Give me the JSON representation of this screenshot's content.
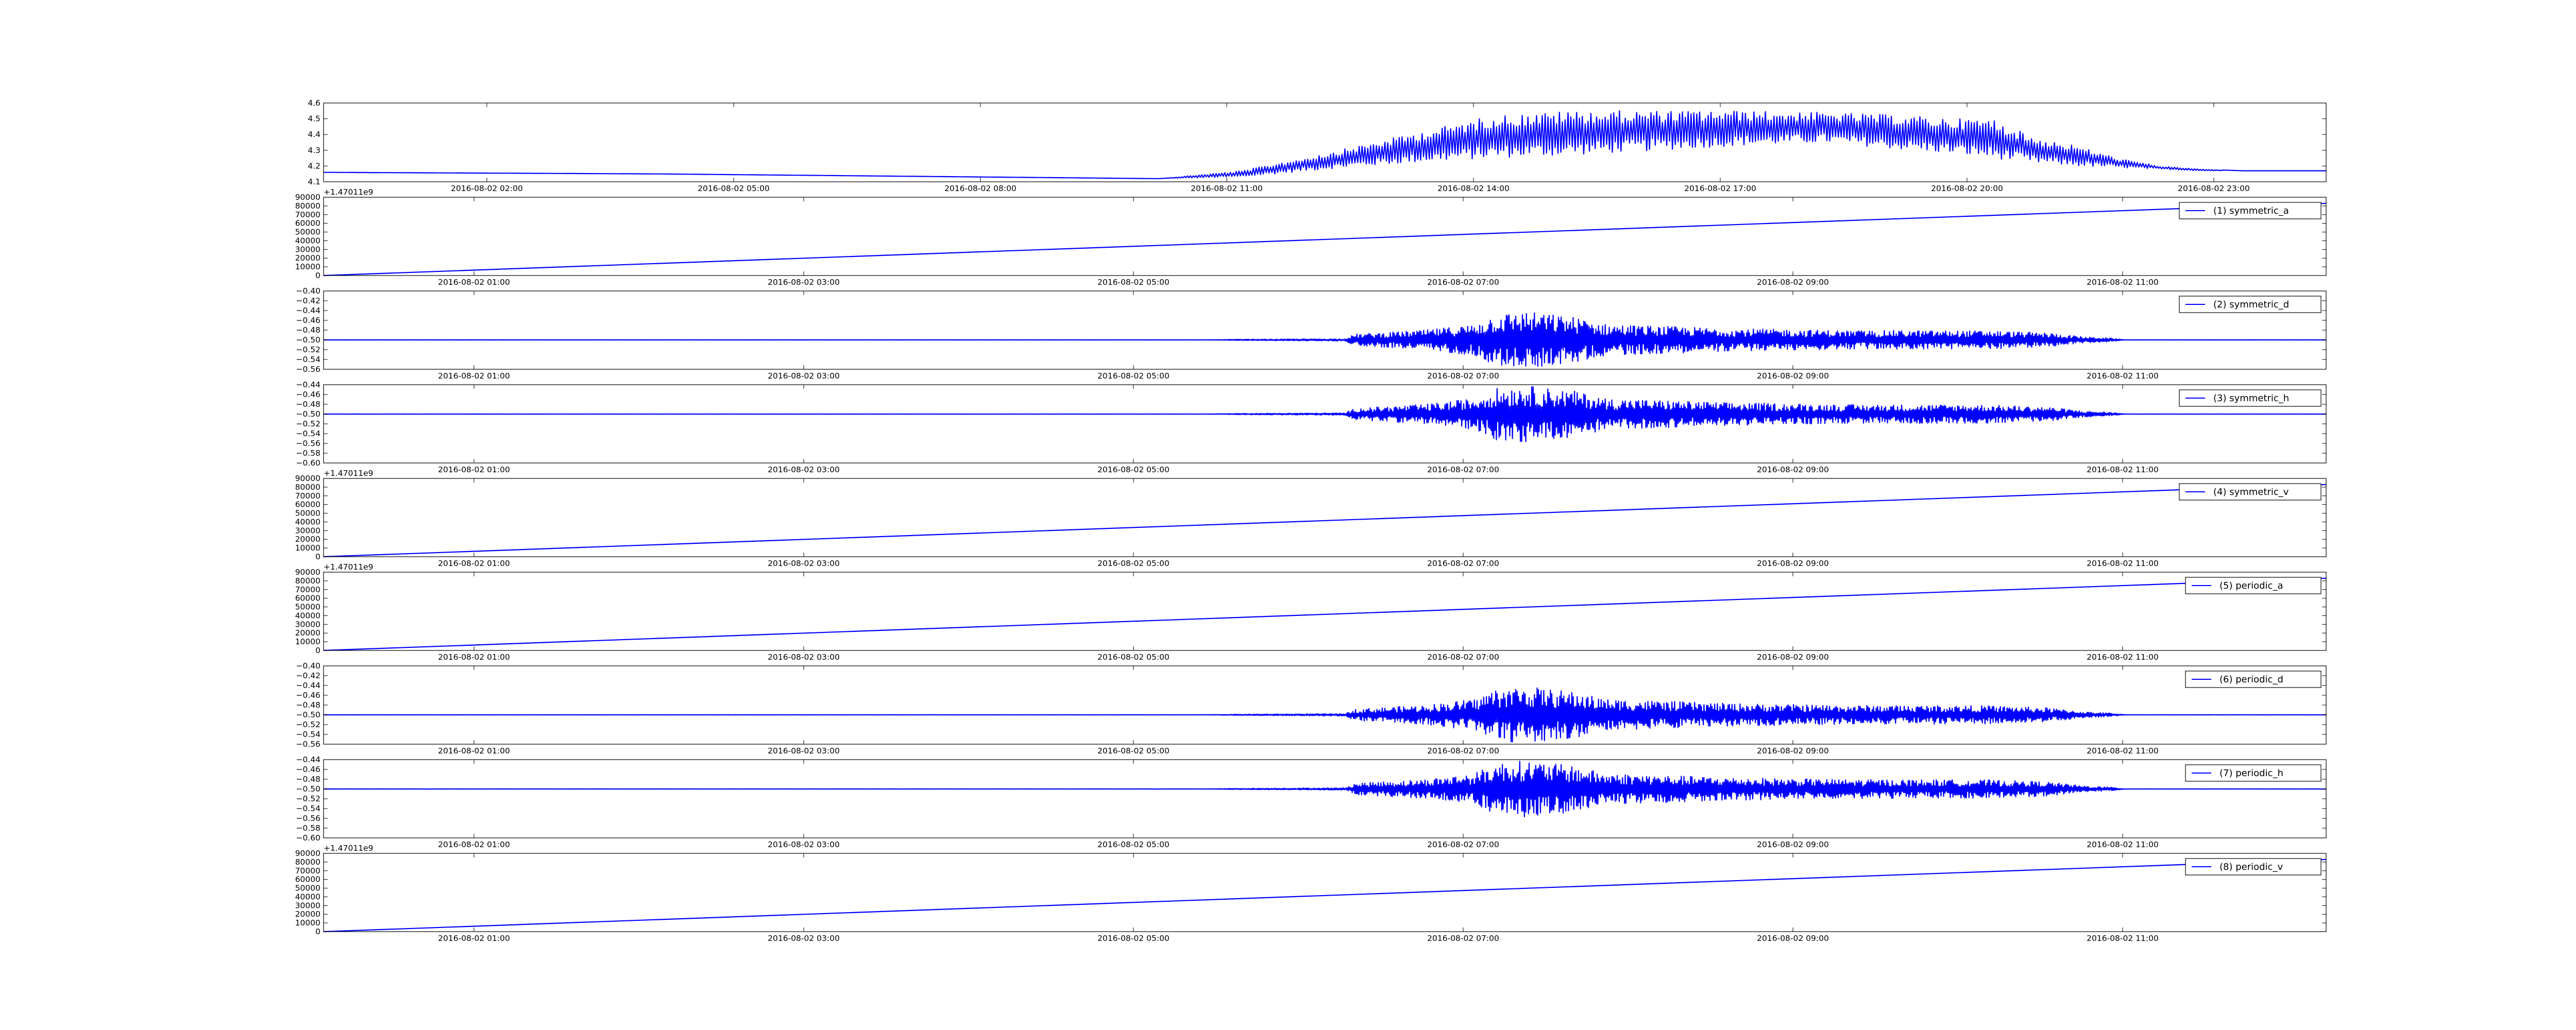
{
  "figure": {
    "line_color": "#0000ff"
  },
  "chart_data": [
    {
      "type": "line",
      "series": [
        {
          "name": "",
          "x": [
            0,
            2,
            4,
            6,
            8,
            10,
            11,
            12,
            13,
            14,
            15,
            16,
            17,
            18,
            19,
            19.5,
            20,
            20.5,
            21,
            21.5,
            22,
            22.5,
            23,
            24
          ],
          "values": [
            4.16,
            4.155,
            4.15,
            4.14,
            4.13,
            4.12,
            4.15,
            4.22,
            4.3,
            4.38,
            4.42,
            4.45,
            4.46,
            4.45,
            4.44,
            4.4,
            4.42,
            4.35,
            4.3,
            4.25,
            4.2,
            4.18,
            4.17,
            4.17
          ],
          "envelope_low": [
            4.16,
            4.155,
            4.15,
            4.14,
            4.13,
            4.12,
            4.13,
            4.18,
            4.22,
            4.25,
            4.27,
            4.3,
            4.33,
            4.35,
            4.3,
            4.28,
            4.25,
            4.22,
            4.2,
            4.19,
            4.18,
            4.17,
            4.17,
            4.17
          ],
          "envelope_high": [
            4.16,
            4.155,
            4.15,
            4.14,
            4.13,
            4.12,
            4.17,
            4.28,
            4.4,
            4.52,
            4.55,
            4.55,
            4.55,
            4.54,
            4.52,
            4.5,
            4.5,
            4.38,
            4.33,
            4.25,
            4.2,
            4.18,
            4.17,
            4.17
          ]
        }
      ],
      "x_tick_labels": [
        "2016-08-02 02:00",
        "2016-08-02 05:00",
        "2016-08-02 08:00",
        "2016-08-02 11:00",
        "2016-08-02 14:00",
        "2016-08-02 17:00",
        "2016-08-02 20:00",
        "2016-08-02 23:00"
      ],
      "y_tick_labels": [
        "4.1",
        "4.2",
        "4.3",
        "4.4",
        "4.5",
        "4.6"
      ],
      "ylim": [
        4.1,
        4.6
      ],
      "offset_text": "",
      "grid": false
    },
    {
      "type": "line",
      "kind": "ramp",
      "series": [
        {
          "name": "(1) symmetric_a"
        }
      ],
      "ylim": [
        0,
        90000
      ],
      "y_tick_labels": [
        "0",
        "10000",
        "20000",
        "30000",
        "40000",
        "50000",
        "60000",
        "70000",
        "80000",
        "90000"
      ],
      "x_tick_labels": [
        "2016-08-02 01:00",
        "2016-08-02 03:00",
        "2016-08-02 05:00",
        "2016-08-02 07:00",
        "2016-08-02 09:00",
        "2016-08-02 11:00"
      ],
      "offset_text": "+1.47011e9",
      "legend": "top-right"
    },
    {
      "type": "line",
      "kind": "noise",
      "series": [
        {
          "name": "(2) symmetric_d"
        }
      ],
      "center": -0.5,
      "ylim": [
        -0.56,
        -0.4
      ],
      "y_tick_labels": [
        "−0.56",
        "−0.54",
        "−0.52",
        "−0.50",
        "−0.48",
        "−0.46",
        "−0.44",
        "−0.42",
        "−0.40"
      ],
      "x_tick_labels": [
        "2016-08-02 01:00",
        "2016-08-02 03:00",
        "2016-08-02 05:00",
        "2016-08-02 07:00",
        "2016-08-02 09:00",
        "2016-08-02 11:00"
      ],
      "offset_text": "",
      "legend": "top-right"
    },
    {
      "type": "line",
      "kind": "noise",
      "series": [
        {
          "name": "(3) symmetric_h"
        }
      ],
      "center": -0.5,
      "ylim": [
        -0.6,
        -0.44
      ],
      "y_tick_labels": [
        "−0.60",
        "−0.58",
        "−0.56",
        "−0.54",
        "−0.52",
        "−0.50",
        "−0.48",
        "−0.46",
        "−0.44"
      ],
      "x_tick_labels": [
        "2016-08-02 01:00",
        "2016-08-02 03:00",
        "2016-08-02 05:00",
        "2016-08-02 07:00",
        "2016-08-02 09:00",
        "2016-08-02 11:00"
      ],
      "offset_text": "",
      "legend": "top-right"
    },
    {
      "type": "line",
      "kind": "ramp",
      "series": [
        {
          "name": "(4) symmetric_v"
        }
      ],
      "ylim": [
        0,
        90000
      ],
      "y_tick_labels": [
        "0",
        "10000",
        "20000",
        "30000",
        "40000",
        "50000",
        "60000",
        "70000",
        "80000",
        "90000"
      ],
      "x_tick_labels": [
        "2016-08-02 01:00",
        "2016-08-02 03:00",
        "2016-08-02 05:00",
        "2016-08-02 07:00",
        "2016-08-02 09:00",
        "2016-08-02 11:00"
      ],
      "offset_text": "+1.47011e9",
      "legend": "top-right"
    },
    {
      "type": "line",
      "kind": "ramp",
      "series": [
        {
          "name": "(5) periodic_a"
        }
      ],
      "ylim": [
        0,
        90000
      ],
      "y_tick_labels": [
        "0",
        "10000",
        "20000",
        "30000",
        "40000",
        "50000",
        "60000",
        "70000",
        "80000",
        "90000"
      ],
      "x_tick_labels": [
        "2016-08-02 01:00",
        "2016-08-02 03:00",
        "2016-08-02 05:00",
        "2016-08-02 07:00",
        "2016-08-02 09:00",
        "2016-08-02 11:00"
      ],
      "offset_text": "+1.47011e9",
      "legend": "top-right"
    },
    {
      "type": "line",
      "kind": "noise",
      "series": [
        {
          "name": "(6) periodic_d"
        }
      ],
      "center": -0.5,
      "ylim": [
        -0.56,
        -0.4
      ],
      "y_tick_labels": [
        "−0.56",
        "−0.54",
        "−0.52",
        "−0.50",
        "−0.48",
        "−0.46",
        "−0.44",
        "−0.42",
        "−0.40"
      ],
      "x_tick_labels": [
        "2016-08-02 01:00",
        "2016-08-02 03:00",
        "2016-08-02 05:00",
        "2016-08-02 07:00",
        "2016-08-02 09:00",
        "2016-08-02 11:00"
      ],
      "offset_text": "",
      "legend": "top-right"
    },
    {
      "type": "line",
      "kind": "noise",
      "series": [
        {
          "name": "(7) periodic_h"
        }
      ],
      "center": -0.5,
      "ylim": [
        -0.6,
        -0.44
      ],
      "y_tick_labels": [
        "−0.60",
        "−0.58",
        "−0.56",
        "−0.54",
        "−0.52",
        "−0.50",
        "−0.48",
        "−0.46",
        "−0.44"
      ],
      "x_tick_labels": [
        "2016-08-02 01:00",
        "2016-08-02 03:00",
        "2016-08-02 05:00",
        "2016-08-02 07:00",
        "2016-08-02 09:00",
        "2016-08-02 11:00"
      ],
      "offset_text": "",
      "legend": "top-right"
    },
    {
      "type": "line",
      "kind": "ramp",
      "series": [
        {
          "name": "(8) periodic_v"
        }
      ],
      "ylim": [
        0,
        90000
      ],
      "y_tick_labels": [
        "0",
        "10000",
        "20000",
        "30000",
        "40000",
        "50000",
        "60000",
        "70000",
        "80000",
        "90000"
      ],
      "x_tick_labels": [
        "2016-08-02 01:00",
        "2016-08-02 03:00",
        "2016-08-02 05:00",
        "2016-08-02 07:00",
        "2016-08-02 09:00",
        "2016-08-02 11:00"
      ],
      "offset_text": "+1.47011e9",
      "legend": "top-right"
    }
  ]
}
